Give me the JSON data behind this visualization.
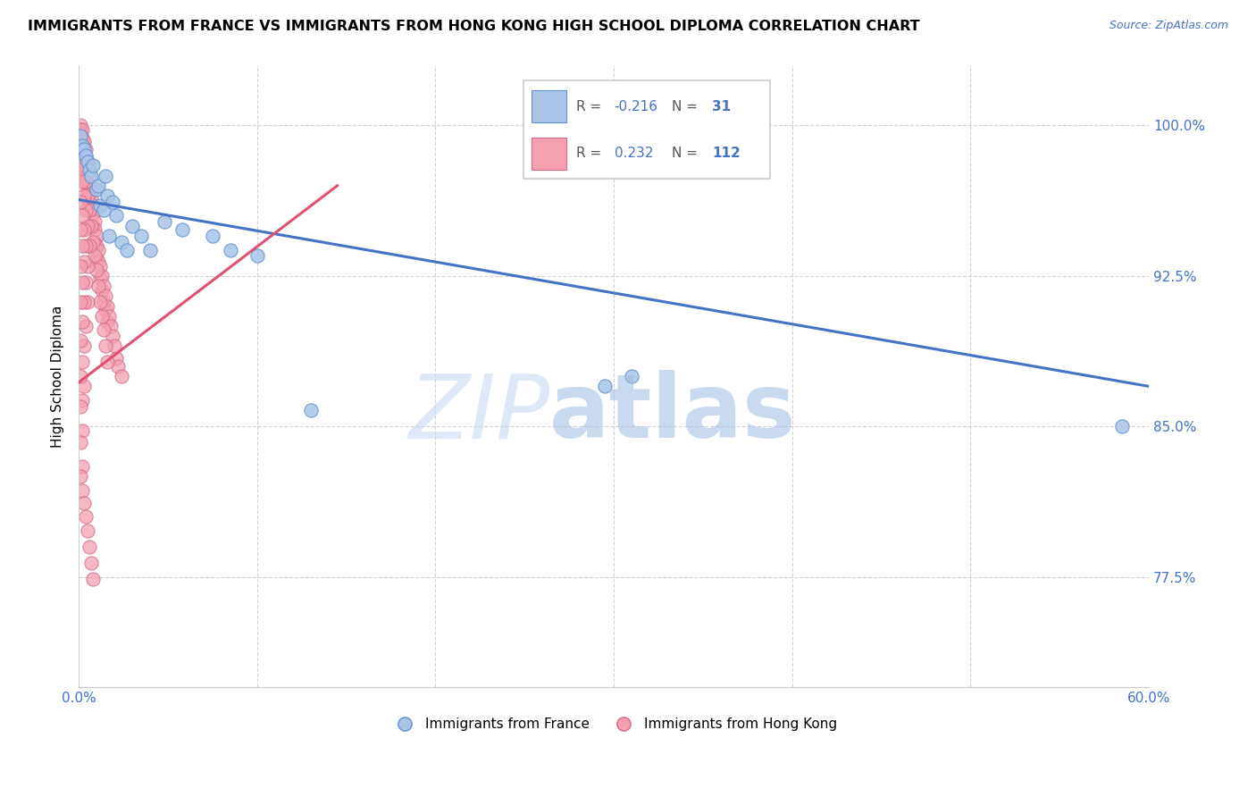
{
  "title": "IMMIGRANTS FROM FRANCE VS IMMIGRANTS FROM HONG KONG HIGH SCHOOL DIPLOMA CORRELATION CHART",
  "source": "Source: ZipAtlas.com",
  "ylabel": "High School Diploma",
  "ytick_labels": [
    "77.5%",
    "85.0%",
    "92.5%",
    "100.0%"
  ],
  "ytick_values": [
    0.775,
    0.85,
    0.925,
    1.0
  ],
  "xlim": [
    0.0,
    0.6
  ],
  "ylim": [
    0.72,
    1.03
  ],
  "legend_blue_r": "-0.216",
  "legend_blue_n": "31",
  "legend_pink_r": "0.232",
  "legend_pink_n": "112",
  "legend_blue_label": "Immigrants from France",
  "legend_pink_label": "Immigrants from Hong Kong",
  "blue_color": "#aac4e8",
  "pink_color": "#f4a0b0",
  "line_blue_color": "#4472c4",
  "line_pink_color": "#e05070",
  "blue_line_x": [
    0.0,
    0.6
  ],
  "blue_line_y": [
    0.963,
    0.87
  ],
  "pink_line_x": [
    0.0,
    0.145
  ],
  "pink_line_y": [
    0.872,
    0.97
  ],
  "blue_scatter_x": [
    0.001,
    0.002,
    0.003,
    0.004,
    0.005,
    0.006,
    0.007,
    0.008,
    0.01,
    0.011,
    0.012,
    0.014,
    0.015,
    0.016,
    0.017,
    0.019,
    0.021,
    0.024,
    0.027,
    0.03,
    0.035,
    0.04,
    0.048,
    0.058,
    0.075,
    0.085,
    0.1,
    0.13,
    0.31,
    0.585,
    0.295
  ],
  "blue_scatter_y": [
    0.995,
    0.99,
    0.988,
    0.985,
    0.982,
    0.978,
    0.975,
    0.98,
    0.968,
    0.97,
    0.96,
    0.958,
    0.975,
    0.965,
    0.945,
    0.962,
    0.955,
    0.942,
    0.938,
    0.95,
    0.945,
    0.938,
    0.952,
    0.948,
    0.945,
    0.938,
    0.935,
    0.858,
    0.875,
    0.85,
    0.87
  ],
  "pink_scatter_x": [
    0.001,
    0.001,
    0.001,
    0.001,
    0.002,
    0.002,
    0.002,
    0.002,
    0.002,
    0.003,
    0.003,
    0.003,
    0.003,
    0.004,
    0.004,
    0.004,
    0.004,
    0.005,
    0.005,
    0.005,
    0.005,
    0.006,
    0.006,
    0.006,
    0.006,
    0.007,
    0.007,
    0.007,
    0.008,
    0.008,
    0.008,
    0.009,
    0.009,
    0.009,
    0.01,
    0.01,
    0.01,
    0.011,
    0.011,
    0.012,
    0.012,
    0.013,
    0.013,
    0.014,
    0.014,
    0.015,
    0.015,
    0.016,
    0.016,
    0.017,
    0.018,
    0.019,
    0.02,
    0.021,
    0.022,
    0.024,
    0.001,
    0.002,
    0.003,
    0.004,
    0.005,
    0.006,
    0.007,
    0.008,
    0.009,
    0.01,
    0.011,
    0.012,
    0.013,
    0.014,
    0.015,
    0.016,
    0.001,
    0.002,
    0.003,
    0.004,
    0.005,
    0.006,
    0.001,
    0.002,
    0.003,
    0.004,
    0.005,
    0.001,
    0.002,
    0.003,
    0.004,
    0.005,
    0.001,
    0.002,
    0.003,
    0.004,
    0.001,
    0.002,
    0.003,
    0.001,
    0.002,
    0.003,
    0.001,
    0.002,
    0.001,
    0.002,
    0.001,
    0.002,
    0.001,
    0.002,
    0.003,
    0.004,
    0.005,
    0.006,
    0.007,
    0.008
  ],
  "pink_scatter_y": [
    1.0,
    0.998,
    0.996,
    0.994,
    0.998,
    0.994,
    0.992,
    0.988,
    0.984,
    0.992,
    0.988,
    0.984,
    0.98,
    0.988,
    0.984,
    0.978,
    0.972,
    0.982,
    0.978,
    0.974,
    0.968,
    0.975,
    0.97,
    0.966,
    0.96,
    0.968,
    0.964,
    0.958,
    0.96,
    0.956,
    0.95,
    0.952,
    0.948,
    0.942,
    0.945,
    0.94,
    0.934,
    0.938,
    0.932,
    0.93,
    0.924,
    0.925,
    0.918,
    0.92,
    0.912,
    0.915,
    0.908,
    0.91,
    0.902,
    0.905,
    0.9,
    0.895,
    0.89,
    0.884,
    0.88,
    0.875,
    0.99,
    0.985,
    0.98,
    0.972,
    0.965,
    0.958,
    0.95,
    0.942,
    0.935,
    0.928,
    0.92,
    0.912,
    0.905,
    0.898,
    0.89,
    0.882,
    0.978,
    0.972,
    0.965,
    0.958,
    0.95,
    0.94,
    0.962,
    0.955,
    0.948,
    0.94,
    0.93,
    0.948,
    0.94,
    0.932,
    0.922,
    0.912,
    0.93,
    0.922,
    0.912,
    0.9,
    0.912,
    0.902,
    0.89,
    0.893,
    0.882,
    0.87,
    0.875,
    0.863,
    0.86,
    0.848,
    0.842,
    0.83,
    0.825,
    0.818,
    0.812,
    0.805,
    0.798,
    0.79,
    0.782,
    0.774
  ]
}
